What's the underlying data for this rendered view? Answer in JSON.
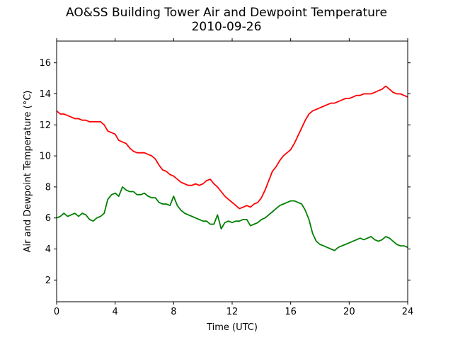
{
  "chart_data": {
    "type": "line",
    "title": "AO&SS Building Tower Air and Dewpoint Temperature",
    "subtitle": "2010-09-26",
    "xlabel": "Time (UTC)",
    "ylabel": "Air and Dewpoint Temperature (°C)",
    "xlim": [
      0,
      24
    ],
    "ylim": [
      0.6,
      17.4
    ],
    "xticks": [
      0,
      4,
      8,
      12,
      16,
      20,
      24
    ],
    "yticks": [
      2,
      4,
      6,
      8,
      10,
      12,
      14,
      16
    ],
    "grid": false,
    "series": [
      {
        "color": "#ff0000",
        "x": [
          0,
          0.25,
          0.5,
          0.75,
          1,
          1.25,
          1.5,
          1.75,
          2,
          2.25,
          2.5,
          2.75,
          3,
          3.25,
          3.5,
          3.75,
          4,
          4.25,
          4.5,
          4.75,
          5,
          5.25,
          5.5,
          5.75,
          6,
          6.25,
          6.5,
          6.75,
          7,
          7.25,
          7.5,
          7.75,
          8,
          8.25,
          8.5,
          8.75,
          9,
          9.25,
          9.5,
          9.75,
          10,
          10.25,
          10.5,
          10.75,
          11,
          11.25,
          11.5,
          11.75,
          12,
          12.25,
          12.5,
          12.75,
          13,
          13.25,
          13.5,
          13.75,
          14,
          14.25,
          14.5,
          14.75,
          15,
          15.25,
          15.5,
          15.75,
          16,
          16.25,
          16.5,
          16.75,
          17,
          17.25,
          17.5,
          17.75,
          18,
          18.25,
          18.5,
          18.75,
          19,
          19.25,
          19.5,
          19.75,
          20,
          20.25,
          20.5,
          20.75,
          21,
          21.25,
          21.5,
          21.75,
          22,
          22.25,
          22.5,
          22.75,
          23,
          23.25,
          23.5,
          23.75,
          24
        ],
        "values": [
          12.9,
          12.7,
          12.7,
          12.6,
          12.5,
          12.4,
          12.4,
          12.3,
          12.3,
          12.2,
          12.2,
          12.2,
          12.2,
          12.0,
          11.6,
          11.5,
          11.4,
          11.0,
          10.9,
          10.8,
          10.5,
          10.3,
          10.2,
          10.2,
          10.2,
          10.1,
          10.0,
          9.8,
          9.4,
          9.1,
          9.0,
          8.8,
          8.7,
          8.5,
          8.3,
          8.2,
          8.1,
          8.1,
          8.2,
          8.1,
          8.2,
          8.4,
          8.5,
          8.2,
          8.0,
          7.7,
          7.4,
          7.2,
          7.0,
          6.8,
          6.6,
          6.7,
          6.8,
          6.7,
          6.9,
          7.0,
          7.3,
          7.8,
          8.4,
          9.0,
          9.3,
          9.7,
          10.0,
          10.2,
          10.4,
          10.8,
          11.3,
          11.8,
          12.3,
          12.7,
          12.9,
          13.0,
          13.1,
          13.2,
          13.3,
          13.4,
          13.4,
          13.5,
          13.6,
          13.7,
          13.7,
          13.8,
          13.9,
          13.9,
          14.0,
          14.0,
          14.0,
          14.1,
          14.2,
          14.3,
          14.5,
          14.3,
          14.1,
          14.0,
          14.0,
          13.9,
          13.8
        ]
      },
      {
        "color": "#008000",
        "x": [
          0,
          0.25,
          0.5,
          0.75,
          1,
          1.25,
          1.5,
          1.75,
          2,
          2.25,
          2.5,
          2.75,
          3,
          3.25,
          3.5,
          3.75,
          4,
          4.25,
          4.5,
          4.75,
          5,
          5.25,
          5.5,
          5.75,
          6,
          6.25,
          6.5,
          6.75,
          7,
          7.25,
          7.5,
          7.75,
          8,
          8.25,
          8.5,
          8.75,
          9,
          9.25,
          9.5,
          9.75,
          10,
          10.25,
          10.5,
          10.75,
          11,
          11.25,
          11.5,
          11.75,
          12,
          12.25,
          12.5,
          12.75,
          13,
          13.25,
          13.5,
          13.75,
          14,
          14.25,
          14.5,
          14.75,
          15,
          15.25,
          15.5,
          15.75,
          16,
          16.25,
          16.5,
          16.75,
          17,
          17.25,
          17.5,
          17.75,
          18,
          18.25,
          18.5,
          18.75,
          19,
          19.25,
          19.5,
          19.75,
          20,
          20.25,
          20.5,
          20.75,
          21,
          21.25,
          21.5,
          21.75,
          22,
          22.25,
          22.5,
          22.75,
          23,
          23.25,
          23.5,
          23.75,
          24
        ],
        "values": [
          6.0,
          6.1,
          6.3,
          6.1,
          6.2,
          6.3,
          6.1,
          6.3,
          6.2,
          5.9,
          5.8,
          6.0,
          6.1,
          6.3,
          7.2,
          7.5,
          7.6,
          7.4,
          8.0,
          7.8,
          7.7,
          7.7,
          7.5,
          7.5,
          7.6,
          7.4,
          7.3,
          7.3,
          7.0,
          6.9,
          6.9,
          6.8,
          7.4,
          6.8,
          6.5,
          6.3,
          6.2,
          6.1,
          6.0,
          5.9,
          5.8,
          5.8,
          5.6,
          5.6,
          6.2,
          5.3,
          5.7,
          5.8,
          5.7,
          5.8,
          5.8,
          5.9,
          5.9,
          5.5,
          5.6,
          5.7,
          5.9,
          6.0,
          6.2,
          6.4,
          6.6,
          6.8,
          6.9,
          7.0,
          7.1,
          7.1,
          7.0,
          6.9,
          6.5,
          5.9,
          5.0,
          4.5,
          4.3,
          4.2,
          4.1,
          4.0,
          3.9,
          4.1,
          4.2,
          4.3,
          4.4,
          4.5,
          4.6,
          4.7,
          4.6,
          4.7,
          4.8,
          4.6,
          4.5,
          4.6,
          4.8,
          4.7,
          4.5,
          4.3,
          4.2,
          4.2,
          4.1
        ]
      }
    ]
  }
}
